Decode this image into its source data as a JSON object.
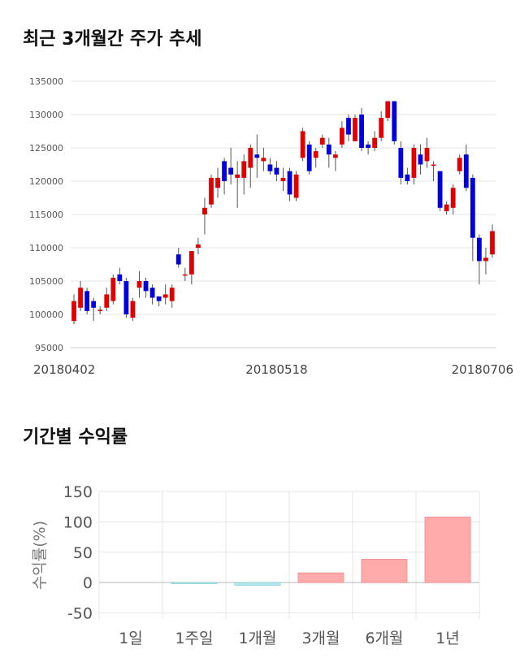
{
  "chart_data": [
    {
      "type": "candlestick",
      "title": "최근 3개월간 주가 추세",
      "x_tick_labels": [
        "20180402",
        "20180518",
        "20180706"
      ],
      "x_tick_index": [
        0,
        31,
        63
      ],
      "ylim": [
        95000,
        135000
      ],
      "y_ticks": [
        95000,
        100000,
        105000,
        110000,
        115000,
        120000,
        125000,
        130000,
        135000
      ],
      "y_tick_labels": [
        "95000",
        "100000",
        "105000",
        "110000",
        "115000",
        "120000",
        "125000",
        "130000",
        "135000"
      ],
      "colors": {
        "up": "#e00000",
        "down": "#0000dd"
      },
      "candles": [
        [
          99000,
          102000,
          103000,
          98500
        ],
        [
          101000,
          104000,
          105000,
          100500
        ],
        [
          103500,
          100500,
          104000,
          100000
        ],
        [
          102000,
          101000,
          102500,
          99000
        ],
        [
          100500,
          100700,
          101200,
          100000
        ],
        [
          101000,
          103000,
          104000,
          100500
        ],
        [
          102000,
          105500,
          106000,
          101500
        ],
        [
          106000,
          105000,
          107000,
          104500
        ],
        [
          105000,
          100000,
          105500,
          99500
        ],
        [
          99500,
          102000,
          102500,
          99000
        ],
        [
          104000,
          105000,
          106500,
          102500
        ],
        [
          105000,
          103500,
          105500,
          102500
        ],
        [
          104000,
          102500,
          104500,
          101500
        ],
        [
          102700,
          102000,
          102700,
          101200
        ],
        [
          102500,
          103000,
          104500,
          101500
        ],
        [
          102000,
          104000,
          104500,
          101000
        ],
        [
          109000,
          107500,
          110000,
          107000
        ],
        [
          106000,
          106000,
          107000,
          105000
        ],
        [
          106000,
          109500,
          109500,
          104500
        ],
        [
          110000,
          110500,
          111500,
          109000
        ],
        [
          115000,
          116000,
          117500,
          112000
        ],
        [
          116500,
          120500,
          121000,
          116000
        ],
        [
          119000,
          120500,
          122000,
          117500
        ],
        [
          123000,
          120000,
          123500,
          118000
        ],
        [
          122000,
          121000,
          125000,
          119500
        ],
        [
          120500,
          121000,
          123000,
          116000
        ],
        [
          120500,
          123000,
          124000,
          118000
        ],
        [
          122000,
          125000,
          125500,
          119000
        ],
        [
          124000,
          123500,
          127000,
          120500
        ],
        [
          123000,
          123500,
          125000,
          121500
        ],
        [
          122500,
          121500,
          123500,
          121000
        ],
        [
          122000,
          121000,
          123000,
          120000
        ],
        [
          120000,
          120500,
          122000,
          118500
        ],
        [
          121500,
          118000,
          122000,
          117000
        ],
        [
          117500,
          121000,
          121500,
          117000
        ],
        [
          123500,
          127500,
          128000,
          123000
        ],
        [
          125500,
          121500,
          126000,
          121000
        ],
        [
          123500,
          124500,
          125000,
          122000
        ],
        [
          125500,
          126500,
          127000,
          125000
        ],
        [
          125500,
          124000,
          126500,
          122000
        ],
        [
          123500,
          124000,
          124500,
          121500
        ],
        [
          125500,
          128000,
          129000,
          125000
        ],
        [
          129500,
          127000,
          130000,
          126000
        ],
        [
          126000,
          129500,
          130000,
          126000
        ],
        [
          130000,
          125000,
          131000,
          124500
        ],
        [
          125500,
          125000,
          126000,
          124000
        ],
        [
          125000,
          126500,
          127500,
          124500
        ],
        [
          126500,
          129500,
          130500,
          126000
        ],
        [
          129500,
          132000,
          132000,
          129000
        ],
        [
          132000,
          126000,
          132000,
          125500
        ],
        [
          125000,
          120500,
          126000,
          119500
        ],
        [
          121000,
          120000,
          122000,
          119500
        ],
        [
          120500,
          125000,
          125500,
          119500
        ],
        [
          124000,
          122500,
          125500,
          121000
        ],
        [
          123000,
          125000,
          126500,
          122000
        ],
        [
          122500,
          122500,
          123000,
          120000
        ],
        [
          121500,
          116000,
          121500,
          115500
        ],
        [
          115500,
          116500,
          117000,
          115000
        ],
        [
          116000,
          119000,
          119500,
          115000
        ],
        [
          121500,
          123500,
          124000,
          121000
        ],
        [
          124000,
          119000,
          125500,
          118500
        ],
        [
          120500,
          111500,
          121000,
          108000
        ],
        [
          111500,
          108000,
          112000,
          104500
        ],
        [
          108000,
          108500,
          110000,
          106000
        ],
        [
          109000,
          112500,
          113500,
          108500
        ]
      ]
    },
    {
      "type": "bar",
      "title": "기간별 수익률",
      "ylabel": "수익률(%)",
      "categories": [
        "1일",
        "1주일",
        "1개월",
        "3개월",
        "6개월",
        "1년"
      ],
      "values": [
        0,
        -1.5,
        -4.5,
        16,
        38.5,
        108
      ],
      "ylim": [
        -60,
        150
      ],
      "y_ticks": [
        -50,
        0,
        50,
        100,
        150
      ],
      "y_tick_labels": [
        "-50",
        "0",
        "50",
        "100",
        "150"
      ],
      "colors": {
        "positive": "#ffaaaa",
        "negative": "#aee8ee"
      }
    }
  ]
}
